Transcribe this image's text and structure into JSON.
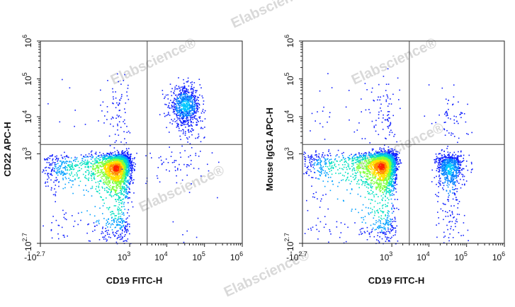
{
  "watermark": "Elabscience®",
  "chart_data": [
    {
      "type": "scatter",
      "title": "",
      "xlabel": "CD19 FITC-H",
      "ylabel": "CD22 APC-H",
      "x_scale": "biexponential",
      "y_scale": "biexponential",
      "x_ticks": [
        {
          "base": "-10",
          "exp": "2.7",
          "value": -500
        },
        {
          "base": "10",
          "exp": "3",
          "value": 1000
        },
        {
          "base": "10",
          "exp": "4",
          "value": 10000
        },
        {
          "base": "10",
          "exp": "5",
          "value": 100000
        },
        {
          "base": "10",
          "exp": "6",
          "value": 1000000
        }
      ],
      "y_ticks": [
        {
          "base": "-10",
          "exp": "2.7",
          "value": -500
        },
        {
          "base": "10",
          "exp": "3",
          "value": 1000
        },
        {
          "base": "10",
          "exp": "4",
          "value": 10000
        },
        {
          "base": "10",
          "exp": "5",
          "value": 100000
        },
        {
          "base": "10",
          "exp": "6",
          "value": 1000000
        }
      ],
      "gate": {
        "x": 3000,
        "y": 1800
      },
      "populations": [
        {
          "center": [
            400,
            400
          ],
          "spread": [
            0.55,
            0.55
          ],
          "count": 2600,
          "kind": "dense"
        },
        {
          "center": [
            30000,
            20000
          ],
          "spread": [
            0.45,
            0.55
          ],
          "count": 700,
          "kind": "medium"
        },
        {
          "center": [
            40000,
            5000
          ],
          "spread": [
            0.5,
            0.7
          ],
          "count": 80,
          "kind": "sparse"
        },
        {
          "center": [
            400,
            15000
          ],
          "spread": [
            0.5,
            1.1
          ],
          "count": 90,
          "kind": "sparse"
        },
        {
          "center": [
            20000,
            500
          ],
          "spread": [
            0.9,
            0.6
          ],
          "count": 60,
          "kind": "sparse"
        }
      ]
    },
    {
      "type": "scatter",
      "title": "",
      "xlabel": "CD19 FITC-H",
      "ylabel": "Mouse IgG1 APC-H",
      "x_scale": "biexponential",
      "y_scale": "biexponential",
      "x_ticks": [
        {
          "base": "-10",
          "exp": "2.7",
          "value": -500
        },
        {
          "base": "10",
          "exp": "3",
          "value": 1000
        },
        {
          "base": "10",
          "exp": "4",
          "value": 10000
        },
        {
          "base": "10",
          "exp": "5",
          "value": 100000
        },
        {
          "base": "10",
          "exp": "6",
          "value": 1000000
        }
      ],
      "y_ticks": [
        {
          "base": "-10",
          "exp": "2.7",
          "value": -500
        },
        {
          "base": "10",
          "exp": "3",
          "value": 1000
        },
        {
          "base": "10",
          "exp": "4",
          "value": 10000
        },
        {
          "base": "10",
          "exp": "5",
          "value": 100000
        },
        {
          "base": "10",
          "exp": "6",
          "value": 1000000
        }
      ],
      "gate": {
        "x": 3000,
        "y": 1800
      },
      "populations": [
        {
          "center": [
            500,
            450
          ],
          "spread": [
            0.55,
            0.55
          ],
          "count": 2600,
          "kind": "dense"
        },
        {
          "center": [
            35000,
            400
          ],
          "spread": [
            0.4,
            0.5
          ],
          "count": 700,
          "kind": "medium"
        },
        {
          "center": [
            500,
            15000
          ],
          "spread": [
            0.5,
            1.1
          ],
          "count": 110,
          "kind": "sparse"
        },
        {
          "center": [
            40000,
            10000
          ],
          "spread": [
            0.5,
            1.0
          ],
          "count": 60,
          "kind": "sparse"
        }
      ]
    }
  ]
}
